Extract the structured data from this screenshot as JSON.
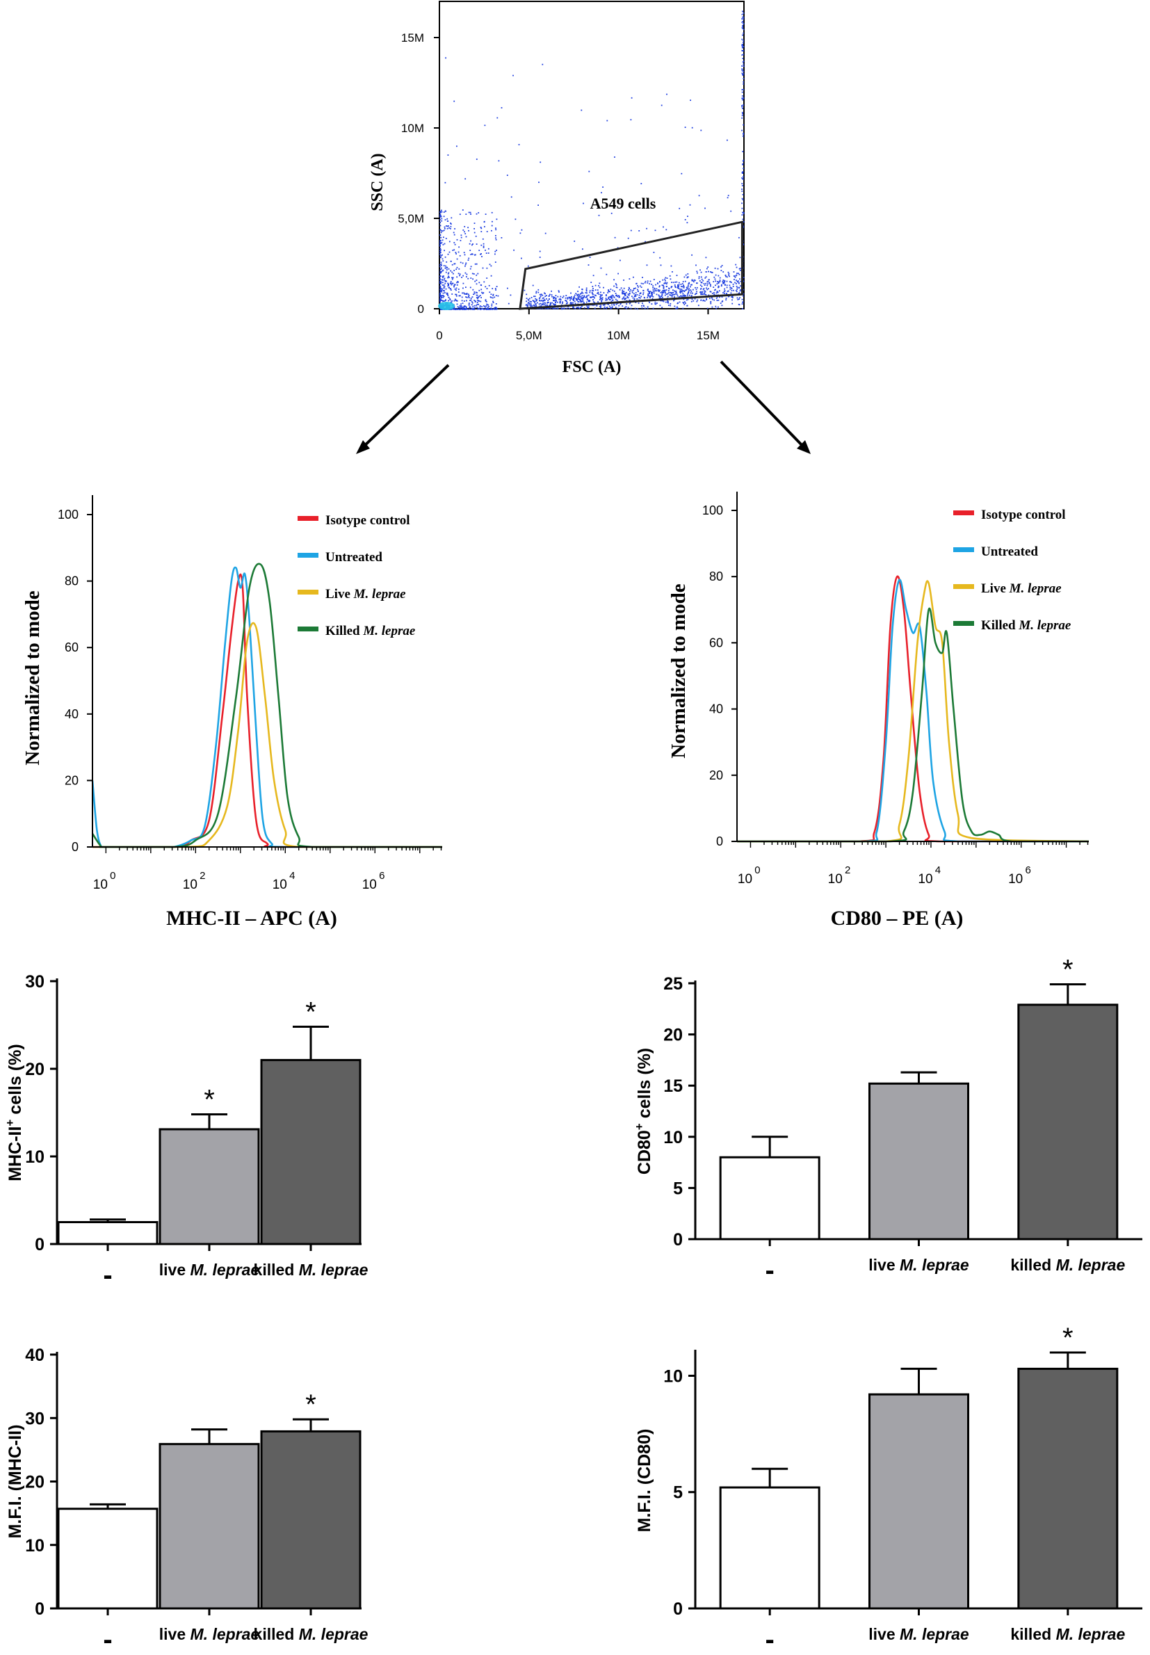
{
  "chart_data": [
    {
      "id": "scatter",
      "type": "scatter",
      "title": "",
      "xlabel": "FSC (A)",
      "ylabel": "SSC (A)",
      "xticks": [
        "0",
        "5,0M",
        "10M",
        "15M"
      ],
      "yticks": [
        "0",
        "5,0M",
        "10M",
        "15M"
      ],
      "xlim_M": [
        0,
        17
      ],
      "ylim_M": [
        0,
        17
      ],
      "gate": {
        "label": "A549 cells",
        "vertices_M": [
          [
            4.5,
            0
          ],
          [
            16.9,
            0.8
          ],
          [
            16.9,
            4.8
          ],
          [
            4.8,
            2.2
          ]
        ]
      },
      "point_color": "#1f3fe0"
    },
    {
      "id": "hist-mhc",
      "type": "line",
      "title": "",
      "xlabel": "MHC-II – APC (A)",
      "ylabel": "Normalized to mode",
      "x_scale": "log10",
      "x_tick_base": "10",
      "x_tick_exponents": [
        "0",
        "2",
        "4",
        "6"
      ],
      "xlim_log10": [
        -0.3,
        7.5
      ],
      "ylim": [
        0,
        100
      ],
      "yticks": [
        "0",
        "20",
        "40",
        "60",
        "80",
        "100"
      ],
      "legend": [
        "Isotype control",
        "Untreated",
        "Live M. leprae",
        "Killed M. leprae"
      ],
      "legend_plain": [
        "Isotype control",
        "Untreated",
        "Live ",
        "Killed "
      ],
      "legend_italic": [
        "",
        "",
        "M. leprae",
        "M. leprae"
      ],
      "legend_position": "top-right",
      "series": [
        {
          "name": "Isotype control",
          "color": "#e8202a",
          "x": [
            -0.3,
            1.5,
            1.9,
            2.3,
            2.6,
            2.8,
            2.95,
            3.05,
            3.15,
            3.35,
            3.6,
            3.9,
            7.5
          ],
          "y": [
            0,
            0,
            2,
            8,
            40,
            65,
            80,
            78,
            45,
            8,
            1,
            0,
            0
          ]
        },
        {
          "name": "Untreated",
          "color": "#1ea4e4",
          "x": [
            -0.3,
            -0.2,
            -0.1,
            0.0,
            1.0,
            1.5,
            1.9,
            2.2,
            2.45,
            2.65,
            2.8,
            2.9,
            3.0,
            3.1,
            3.2,
            3.35,
            3.5,
            3.7,
            4.0,
            7.5
          ],
          "y": [
            20,
            5,
            0,
            0,
            0,
            0,
            2,
            6,
            30,
            60,
            80,
            84,
            78,
            82,
            68,
            35,
            8,
            1,
            0,
            0
          ]
        },
        {
          "name": "Live M. leprae",
          "color": "#e6b81e",
          "x": [
            -0.3,
            1.8,
            2.3,
            2.7,
            2.95,
            3.15,
            3.35,
            3.55,
            3.75,
            4.0,
            4.3,
            7.5
          ],
          "y": [
            0,
            0,
            2,
            12,
            35,
            62,
            66,
            45,
            20,
            5,
            0,
            0
          ]
        },
        {
          "name": "Killed M. leprae",
          "color": "#1c7a36",
          "x": [
            -0.3,
            -0.1,
            0.0,
            1.5,
            2.0,
            2.5,
            2.9,
            3.2,
            3.45,
            3.65,
            3.85,
            4.05,
            4.3,
            4.6,
            7.5
          ],
          "y": [
            4,
            0,
            0,
            0,
            2,
            10,
            45,
            78,
            85,
            74,
            45,
            15,
            3,
            0,
            0
          ]
        }
      ]
    },
    {
      "id": "hist-cd80",
      "type": "line",
      "title": "",
      "xlabel": "CD80 – PE (A)",
      "ylabel": "Normalized to mode",
      "x_scale": "log10",
      "x_tick_base": "10",
      "x_tick_exponents": [
        "0",
        "2",
        "4",
        "6"
      ],
      "xlim_log10": [
        -0.3,
        7.5
      ],
      "ylim": [
        0,
        100
      ],
      "yticks": [
        "0",
        "20",
        "40",
        "60",
        "80",
        "100"
      ],
      "legend": [
        "Isotype control",
        "Untreated",
        "Live M. leprae",
        "Killed M. leprae"
      ],
      "legend_plain": [
        "Isotype control",
        "Untreated",
        "Live ",
        "Killed "
      ],
      "legend_italic": [
        "",
        "",
        "M. leprae",
        "M. leprae"
      ],
      "legend_position": "top-right",
      "series": [
        {
          "name": "Isotype control",
          "color": "#e8202a",
          "x": [
            -0.3,
            2.4,
            2.75,
            2.95,
            3.1,
            3.25,
            3.4,
            3.55,
            3.75,
            3.95,
            4.2,
            7.5
          ],
          "y": [
            0,
            0,
            3,
            25,
            65,
            80,
            70,
            45,
            15,
            2,
            0,
            0
          ]
        },
        {
          "name": "Untreated",
          "color": "#1ea4e4",
          "x": [
            -0.3,
            2.5,
            2.8,
            3.0,
            3.15,
            3.3,
            3.45,
            3.6,
            3.75,
            3.9,
            4.05,
            4.3,
            4.6,
            7.5
          ],
          "y": [
            0,
            0,
            3,
            30,
            65,
            79,
            70,
            63,
            65,
            45,
            18,
            3,
            0,
            0
          ]
        },
        {
          "name": "Live M. leprae",
          "color": "#e6b81e",
          "x": [
            -0.3,
            3.0,
            3.3,
            3.5,
            3.7,
            3.85,
            3.95,
            4.1,
            4.25,
            4.4,
            4.6,
            4.9,
            7.5
          ],
          "y": [
            0,
            0,
            5,
            25,
            60,
            75,
            78,
            65,
            60,
            30,
            8,
            1,
            0
          ]
        },
        {
          "name": "Killed M. leprae",
          "color": "#1c7a36",
          "x": [
            -0.3,
            3.1,
            3.4,
            3.6,
            3.8,
            3.95,
            4.1,
            4.25,
            4.35,
            4.5,
            4.7,
            4.9,
            5.1,
            5.3,
            5.5,
            5.8,
            7.5
          ],
          "y": [
            0,
            0,
            3,
            15,
            45,
            70,
            60,
            57,
            63,
            40,
            12,
            3,
            2,
            3,
            2,
            0,
            0
          ]
        }
      ]
    },
    {
      "id": "bar-mhc-pct",
      "type": "bar",
      "title": "",
      "ylabel_plain": "MHC-II",
      "ylabel_sup": "+",
      "ylabel_rest": " cells (%)",
      "ylim": [
        0,
        30
      ],
      "yticks": [
        "0",
        "10",
        "20",
        "30"
      ],
      "categories": [
        "-",
        "live M. leprae",
        "killed M. leprae"
      ],
      "category_plain": [
        "-",
        "live ",
        "killed "
      ],
      "category_italic": [
        "",
        "M. leprae",
        "M. leprae"
      ],
      "values": [
        2.5,
        13.1,
        21.0
      ],
      "errors": [
        0.3,
        1.7,
        3.8
      ],
      "significance": [
        "",
        "*",
        "*"
      ],
      "bar_colors": [
        "#ffffff",
        "#a3a3a8",
        "#606060"
      ]
    },
    {
      "id": "bar-cd80-pct",
      "type": "bar",
      "title": "",
      "ylabel_plain": "CD80",
      "ylabel_sup": "+",
      "ylabel_rest": " cells (%)",
      "ylim": [
        0,
        25
      ],
      "yticks": [
        "0",
        "5",
        "10",
        "15",
        "20",
        "25"
      ],
      "categories": [
        "-",
        "live M. leprae",
        "killed M. leprae"
      ],
      "category_plain": [
        "-",
        "live ",
        "killed "
      ],
      "category_italic": [
        "",
        "M. leprae",
        "M. leprae"
      ],
      "values": [
        8.0,
        15.2,
        22.9
      ],
      "errors": [
        2.0,
        1.1,
        2.0
      ],
      "significance": [
        "",
        "",
        "*"
      ],
      "bar_colors": [
        "#ffffff",
        "#a3a3a8",
        "#606060"
      ]
    },
    {
      "id": "bar-mhc-mfi",
      "type": "bar",
      "title": "",
      "ylabel_plain": "M.F.I. (MHC-II)",
      "ylabel_sup": "",
      "ylabel_rest": "",
      "ylim": [
        0,
        40
      ],
      "yticks": [
        "0",
        "10",
        "20",
        "30",
        "40"
      ],
      "categories": [
        "-",
        "live M. leprae",
        "killed M. leprae"
      ],
      "category_plain": [
        "-",
        "live ",
        "killed "
      ],
      "category_italic": [
        "",
        "M. leprae",
        "M. leprae"
      ],
      "values": [
        15.7,
        25.9,
        27.9
      ],
      "errors": [
        0.7,
        2.3,
        1.9
      ],
      "significance": [
        "",
        "",
        "*"
      ],
      "bar_colors": [
        "#ffffff",
        "#a3a3a8",
        "#606060"
      ]
    },
    {
      "id": "bar-cd80-mfi",
      "type": "bar",
      "title": "",
      "ylabel_plain": "M.F.I. (CD80)",
      "ylabel_sup": "",
      "ylabel_rest": "",
      "ylim": [
        0,
        11
      ],
      "yticks": [
        "0",
        "5",
        "10"
      ],
      "categories": [
        "-",
        "live M. leprae",
        "killed M. leprae"
      ],
      "category_plain": [
        "-",
        "live ",
        "killed "
      ],
      "category_italic": [
        "",
        "M. leprae",
        "M. leprae"
      ],
      "values": [
        5.2,
        9.2,
        10.3
      ],
      "errors": [
        0.8,
        1.1,
        0.7
      ],
      "significance": [
        "",
        "",
        "*"
      ],
      "bar_colors": [
        "#ffffff",
        "#a3a3a8",
        "#606060"
      ]
    }
  ]
}
